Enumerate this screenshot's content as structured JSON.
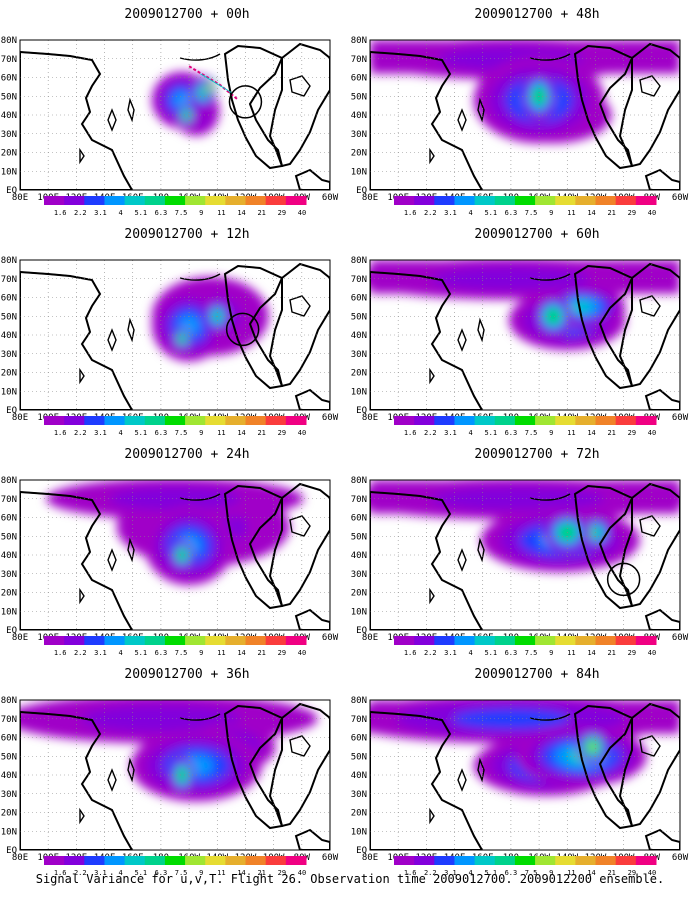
{
  "footer": "Signal Variance for u,v,T. Flight 26. Observation time 2009012700. 2009012200 ensemble.",
  "map": {
    "xticks": [
      "80E",
      "100E",
      "120E",
      "140E",
      "160E",
      "180",
      "160W",
      "140W",
      "120W",
      "100W",
      "80W",
      "60W"
    ],
    "yticks": [
      "80N",
      "70N",
      "60N",
      "50N",
      "40N",
      "30N",
      "20N",
      "10N",
      "EQ"
    ],
    "lon_range": [
      80,
      300
    ],
    "lat_range": [
      0,
      80
    ],
    "grid": true
  },
  "colorbar": {
    "labels": [
      "1.6",
      "2.2",
      "3.1",
      "4",
      "5.1",
      "6.3",
      "7.5",
      "9",
      "11",
      "14",
      "21",
      "29",
      "40"
    ],
    "colors": [
      "#a000c8",
      "#8200dc",
      "#1e3cff",
      "#0096ff",
      "#00c8c8",
      "#00d28c",
      "#00dc00",
      "#a0e632",
      "#e6dc32",
      "#e6af2d",
      "#f08228",
      "#fa3c3c",
      "#f00082"
    ]
  },
  "chart_data": [
    {
      "type": "heatmap",
      "title": "2009012700 + 00h",
      "lead_hours": 0,
      "blobs": [
        [
          210,
          52,
          8,
          8,
          5
        ],
        [
          195,
          48,
          20,
          14,
          3
        ],
        [
          198,
          40,
          5,
          5,
          6
        ],
        [
          215,
          55,
          3,
          4,
          8
        ],
        [
          205,
          42,
          15,
          12,
          2
        ]
      ],
      "observation_circles": [
        [
          240,
          47
        ]
      ],
      "flight_track": true,
      "clear_band": false
    },
    {
      "type": "heatmap",
      "title": "2009012700 + 48h",
      "lead_hours": 48,
      "blobs": [
        [
          200,
          50,
          10,
          12,
          6
        ],
        [
          200,
          48,
          45,
          22,
          3
        ],
        [
          180,
          70,
          100,
          10,
          1
        ],
        [
          210,
          40,
          40,
          14,
          2
        ]
      ],
      "observation_circles": [],
      "flight_track": false,
      "clear_band": true
    },
    {
      "type": "heatmap",
      "title": "2009012700 + 12h",
      "lead_hours": 12,
      "blobs": [
        [
          220,
          50,
          8,
          8,
          5
        ],
        [
          195,
          38,
          5,
          5,
          6
        ],
        [
          200,
          45,
          25,
          18,
          3
        ],
        [
          215,
          50,
          40,
          20,
          1
        ]
      ],
      "observation_circles": [
        [
          238,
          43
        ]
      ],
      "flight_track": false,
      "clear_band": false
    },
    {
      "type": "heatmap",
      "title": "2009012700 + 60h",
      "lead_hours": 60,
      "blobs": [
        [
          210,
          50,
          12,
          10,
          6
        ],
        [
          220,
          48,
          40,
          15,
          3
        ],
        [
          180,
          70,
          110,
          10,
          1
        ],
        [
          230,
          55,
          30,
          10,
          4
        ]
      ],
      "observation_circles": [],
      "flight_track": false,
      "clear_band": true
    },
    {
      "type": "heatmap",
      "title": "2009012700 + 24h",
      "lead_hours": 24,
      "blobs": [
        [
          195,
          40,
          7,
          7,
          6
        ],
        [
          200,
          45,
          30,
          20,
          3
        ],
        [
          210,
          55,
          60,
          20,
          1
        ],
        [
          190,
          70,
          90,
          10,
          1
        ]
      ],
      "observation_circles": [],
      "flight_track": false,
      "clear_band": false
    },
    {
      "type": "heatmap",
      "title": "2009012700 + 72h",
      "lead_hours": 72,
      "blobs": [
        [
          220,
          52,
          15,
          10,
          6
        ],
        [
          240,
          52,
          12,
          8,
          5
        ],
        [
          215,
          48,
          55,
          16,
          3
        ],
        [
          185,
          70,
          120,
          10,
          1
        ]
      ],
      "observation_circles": [
        [
          260,
          27
        ]
      ],
      "flight_track": false,
      "clear_band": true
    },
    {
      "type": "heatmap",
      "title": "2009012700 + 36h",
      "lead_hours": 36,
      "blobs": [
        [
          195,
          40,
          7,
          9,
          6
        ],
        [
          205,
          45,
          45,
          18,
          3
        ],
        [
          180,
          70,
          110,
          12,
          1
        ],
        [
          230,
          55,
          30,
          12,
          2
        ]
      ],
      "observation_circles": [],
      "flight_track": false,
      "clear_band": false
    },
    {
      "type": "heatmap",
      "title": "2009012700 + 84h",
      "lead_hours": 84,
      "blobs": [
        [
          238,
          55,
          10,
          8,
          7
        ],
        [
          230,
          50,
          45,
          15,
          4
        ],
        [
          180,
          70,
          120,
          12,
          2
        ],
        [
          205,
          45,
          50,
          15,
          3
        ]
      ],
      "observation_circles": [],
      "flight_track": false,
      "clear_band": true
    }
  ]
}
